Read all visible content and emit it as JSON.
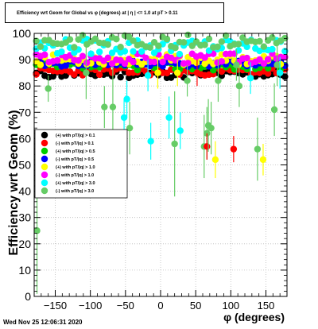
{
  "chart_data": {
    "type": "scatter",
    "title": "Efficiency wrt Geom for Global vs φ (degrees) at | η | <= 1.0 at pT > 0.11",
    "xlabel": "φ (degrees)",
    "ylabel": "Efficiency wrt Geom (%)",
    "xlim": [
      -180,
      180
    ],
    "ylim": [
      0,
      100
    ],
    "x_ticks": [
      -150,
      -100,
      -50,
      0,
      50,
      100,
      150
    ],
    "y_ticks": [
      0,
      10,
      20,
      30,
      40,
      50,
      60,
      70,
      80,
      90,
      100
    ],
    "x_tick_labels": [
      "−150",
      "−100",
      "−50",
      "0",
      "50",
      "100",
      "150"
    ],
    "y_tick_labels": [
      "0",
      "10",
      "20",
      "30",
      "40",
      "50",
      "60",
      "70",
      "80",
      "90",
      "100"
    ],
    "legend_placement": "center-left",
    "series": [
      {
        "name": "(+) with pT/|q| > 0.1",
        "color": "#000000",
        "base": 84.5,
        "spread": 1.5,
        "seed": 11
      },
      {
        "name": "(-) with pT/|q| > 0.1",
        "color": "#ff0000",
        "base": 85.5,
        "spread": 1.5,
        "seed": 23
      },
      {
        "name": "(+) with pT/|q| > 0.5",
        "color": "#00cc00",
        "base": 87.5,
        "spread": 1.5,
        "seed": 37
      },
      {
        "name": "(-) with pT/|q| > 0.5",
        "color": "#0000ff",
        "base": 88.5,
        "spread": 1.2,
        "seed": 41
      },
      {
        "name": "(+) with pT/|q| > 1.0",
        "color": "#ffff00",
        "base": 90.0,
        "spread": 2.0,
        "seed": 53
      },
      {
        "name": "(-) with pT/|q| > 1.0",
        "color": "#ff00ff",
        "base": 90.5,
        "spread": 2.0,
        "seed": 67
      },
      {
        "name": "(+) with pT/|q| > 3.0",
        "color": "#00ffff",
        "base": 95.0,
        "spread": 3.0,
        "seed": 79
      },
      {
        "name": "(-) with pT/|q| > 3.0",
        "color": "#66cc66",
        "base": 97.0,
        "spread": 2.5,
        "seed": 83
      }
    ],
    "outliers": [
      {
        "series": 7,
        "x": -176,
        "y": 25,
        "err": 24
      },
      {
        "series": 7,
        "x": -160,
        "y": 79,
        "err": 5
      },
      {
        "series": 7,
        "x": -106,
        "y": 85,
        "err": 10
      },
      {
        "series": 7,
        "x": -80,
        "y": 72,
        "err": 8
      },
      {
        "series": 7,
        "x": -68,
        "y": 72,
        "err": 15
      },
      {
        "series": 6,
        "x": -52,
        "y": 68,
        "err": 7
      },
      {
        "series": 6,
        "x": -48,
        "y": 75,
        "err": 7
      },
      {
        "series": 7,
        "x": -44,
        "y": 64,
        "err": 10
      },
      {
        "series": 6,
        "x": -18,
        "y": 84,
        "err": 6
      },
      {
        "series": 6,
        "x": -14,
        "y": 59,
        "err": 7
      },
      {
        "series": 4,
        "x": -4,
        "y": 85,
        "err": 6
      },
      {
        "series": 6,
        "x": 12,
        "y": 68,
        "err": 8
      },
      {
        "series": 7,
        "x": 20,
        "y": 58,
        "err": 20
      },
      {
        "series": 4,
        "x": 24,
        "y": 85,
        "err": 5
      },
      {
        "series": 6,
        "x": 28,
        "y": 63,
        "err": 7
      },
      {
        "series": 7,
        "x": 38,
        "y": 82,
        "err": 6
      },
      {
        "series": 1,
        "x": 52,
        "y": 85,
        "err": 5
      },
      {
        "series": 7,
        "x": 62,
        "y": 57,
        "err": 12
      },
      {
        "series": 7,
        "x": 66,
        "y": 62,
        "err": 10
      },
      {
        "series": 1,
        "x": 66,
        "y": 57,
        "err": 5
      },
      {
        "series": 7,
        "x": 68,
        "y": 65,
        "err": 10
      },
      {
        "series": 7,
        "x": 72,
        "y": 64,
        "err": 10
      },
      {
        "series": 4,
        "x": 78,
        "y": 52,
        "err": 7
      },
      {
        "series": 7,
        "x": 82,
        "y": 82,
        "err": 8
      },
      {
        "series": 1,
        "x": 104,
        "y": 56,
        "err": 5
      },
      {
        "series": 7,
        "x": 108,
        "y": 88,
        "err": 6
      },
      {
        "series": 7,
        "x": 112,
        "y": 80,
        "err": 8
      },
      {
        "series": 6,
        "x": 128,
        "y": 83,
        "err": 6
      },
      {
        "series": 7,
        "x": 138,
        "y": 56,
        "err": 12
      },
      {
        "series": 4,
        "x": 146,
        "y": 52,
        "err": 6
      },
      {
        "series": 7,
        "x": 162,
        "y": 71,
        "err": 10
      },
      {
        "series": 7,
        "x": 166,
        "y": 88,
        "err": 8
      },
      {
        "series": 6,
        "x": 170,
        "y": 85,
        "err": 6
      }
    ],
    "grid": true
  },
  "timestamp": "Wed Nov 25 12:06:31 2020"
}
